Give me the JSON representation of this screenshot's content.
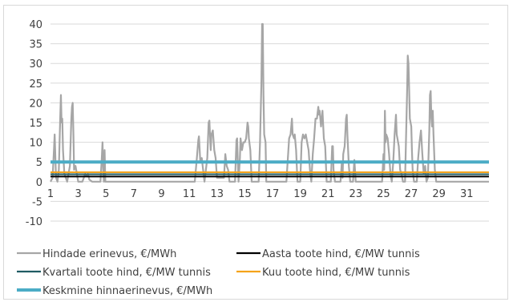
{
  "chart_data": {
    "type": "line",
    "title": "",
    "xlabel": "",
    "ylabel": "",
    "ylim": [
      -10,
      40
    ],
    "y_ticks": [
      -10,
      -5,
      0,
      5,
      10,
      15,
      20,
      25,
      30,
      35,
      40
    ],
    "x_tick_labels": [
      "1",
      "3",
      "5",
      "7",
      "9",
      "11",
      "13",
      "15",
      "17",
      "19",
      "21",
      "23",
      "25",
      "27",
      "29",
      "31"
    ],
    "x_range": [
      1,
      32.6
    ],
    "grid": "horizontal",
    "legend_position": "bottom",
    "series": [
      {
        "name": "Hindade erinevus, €/MWh",
        "color": "#a6a6a6",
        "points": [
          [
            1.0,
            0
          ],
          [
            1.15,
            1
          ],
          [
            1.25,
            8
          ],
          [
            1.3,
            12
          ],
          [
            1.35,
            6
          ],
          [
            1.4,
            1
          ],
          [
            1.5,
            0
          ],
          [
            1.6,
            3
          ],
          [
            1.7,
            16
          ],
          [
            1.75,
            22
          ],
          [
            1.8,
            15
          ],
          [
            1.85,
            16
          ],
          [
            1.9,
            8
          ],
          [
            2.0,
            2
          ],
          [
            2.2,
            0
          ],
          [
            2.4,
            4
          ],
          [
            2.5,
            16
          ],
          [
            2.55,
            19
          ],
          [
            2.6,
            20
          ],
          [
            2.65,
            12
          ],
          [
            2.7,
            3
          ],
          [
            2.8,
            4
          ],
          [
            2.9,
            2
          ],
          [
            3.0,
            0
          ],
          [
            3.3,
            0
          ],
          [
            3.5,
            2
          ],
          [
            3.6,
            1.5
          ],
          [
            3.7,
            2
          ],
          [
            3.8,
            0.5
          ],
          [
            4.0,
            0
          ],
          [
            4.6,
            0
          ],
          [
            4.7,
            6
          ],
          [
            4.75,
            10
          ],
          [
            4.8,
            3
          ],
          [
            4.85,
            0
          ],
          [
            4.9,
            8
          ],
          [
            4.95,
            0
          ],
          [
            11.4,
            0
          ],
          [
            11.55,
            6
          ],
          [
            11.65,
            10.5
          ],
          [
            11.7,
            11.5
          ],
          [
            11.8,
            5
          ],
          [
            11.9,
            6
          ],
          [
            12.0,
            3
          ],
          [
            12.1,
            0
          ],
          [
            12.3,
            6
          ],
          [
            12.4,
            15
          ],
          [
            12.45,
            15.5
          ],
          [
            12.55,
            8
          ],
          [
            12.6,
            12
          ],
          [
            12.7,
            13
          ],
          [
            12.8,
            8
          ],
          [
            12.9,
            6
          ],
          [
            13.0,
            1
          ],
          [
            13.5,
            1
          ],
          [
            13.6,
            7
          ],
          [
            13.7,
            4
          ],
          [
            13.8,
            3
          ],
          [
            13.9,
            0
          ],
          [
            14.3,
            0
          ],
          [
            14.4,
            10.5
          ],
          [
            14.45,
            11
          ],
          [
            14.5,
            5
          ],
          [
            14.55,
            0
          ],
          [
            14.65,
            6
          ],
          [
            14.7,
            11
          ],
          [
            14.8,
            8
          ],
          [
            14.9,
            10
          ],
          [
            15.0,
            10
          ],
          [
            15.1,
            11
          ],
          [
            15.2,
            15
          ],
          [
            15.25,
            14
          ],
          [
            15.3,
            11
          ],
          [
            15.4,
            8
          ],
          [
            15.5,
            0
          ],
          [
            16.0,
            0
          ],
          [
            16.1,
            10
          ],
          [
            16.2,
            25
          ],
          [
            16.25,
            40
          ],
          [
            16.3,
            40
          ],
          [
            16.35,
            22
          ],
          [
            16.4,
            12
          ],
          [
            16.5,
            10
          ],
          [
            16.55,
            0
          ],
          [
            18.0,
            0
          ],
          [
            18.2,
            11
          ],
          [
            18.3,
            12
          ],
          [
            18.4,
            16
          ],
          [
            18.45,
            12
          ],
          [
            18.55,
            11
          ],
          [
            18.6,
            12
          ],
          [
            18.7,
            8
          ],
          [
            18.8,
            0
          ],
          [
            19.0,
            0
          ],
          [
            19.1,
            10
          ],
          [
            19.2,
            12
          ],
          [
            19.3,
            11
          ],
          [
            19.4,
            12
          ],
          [
            19.5,
            10
          ],
          [
            19.6,
            8
          ],
          [
            19.7,
            3
          ],
          [
            19.8,
            0
          ],
          [
            19.9,
            7
          ],
          [
            20.0,
            11
          ],
          [
            20.1,
            16
          ],
          [
            20.2,
            16
          ],
          [
            20.3,
            19
          ],
          [
            20.35,
            17
          ],
          [
            20.4,
            18
          ],
          [
            20.5,
            14
          ],
          [
            20.6,
            18
          ],
          [
            20.7,
            11
          ],
          [
            20.8,
            9
          ],
          [
            20.9,
            0
          ],
          [
            21.2,
            0
          ],
          [
            21.3,
            9
          ],
          [
            21.35,
            9
          ],
          [
            21.4,
            3
          ],
          [
            21.5,
            0
          ],
          [
            21.9,
            0
          ],
          [
            22.0,
            5
          ],
          [
            22.05,
            1
          ],
          [
            22.1,
            7
          ],
          [
            22.2,
            9
          ],
          [
            22.3,
            16
          ],
          [
            22.35,
            17
          ],
          [
            22.4,
            12
          ],
          [
            22.5,
            4
          ],
          [
            22.6,
            0
          ],
          [
            22.8,
            0
          ],
          [
            22.9,
            5.5
          ],
          [
            23.0,
            0
          ],
          [
            24.9,
            0
          ],
          [
            25.0,
            7
          ],
          [
            25.05,
            3
          ],
          [
            25.1,
            18
          ],
          [
            25.15,
            10
          ],
          [
            25.2,
            12
          ],
          [
            25.3,
            11
          ],
          [
            25.4,
            7
          ],
          [
            25.5,
            2
          ],
          [
            25.6,
            0
          ],
          [
            25.7,
            5
          ],
          [
            25.8,
            12
          ],
          [
            25.9,
            17
          ],
          [
            25.95,
            12
          ],
          [
            26.0,
            11
          ],
          [
            26.1,
            9
          ],
          [
            26.2,
            3
          ],
          [
            26.3,
            2
          ],
          [
            26.4,
            0
          ],
          [
            26.55,
            0
          ],
          [
            26.65,
            15
          ],
          [
            26.7,
            23
          ],
          [
            26.75,
            32
          ],
          [
            26.8,
            30
          ],
          [
            26.85,
            23
          ],
          [
            26.9,
            16
          ],
          [
            27.0,
            14
          ],
          [
            27.05,
            8
          ],
          [
            27.1,
            3
          ],
          [
            27.2,
            0
          ],
          [
            27.4,
            0
          ],
          [
            27.5,
            6
          ],
          [
            27.6,
            10
          ],
          [
            27.7,
            13
          ],
          [
            27.8,
            7
          ],
          [
            27.9,
            2
          ],
          [
            28.0,
            4
          ],
          [
            28.1,
            0
          ],
          [
            28.2,
            1
          ],
          [
            28.3,
            13
          ],
          [
            28.35,
            22
          ],
          [
            28.4,
            23
          ],
          [
            28.45,
            16
          ],
          [
            28.5,
            14
          ],
          [
            28.55,
            18
          ],
          [
            28.6,
            12
          ],
          [
            28.7,
            3
          ],
          [
            28.8,
            0
          ],
          [
            32.6,
            0
          ]
        ]
      },
      {
        "name": "Aasta toote hind, €/MW tunnis",
        "color": "#000000",
        "value": 1.3
      },
      {
        "name": "Kvartali toote hind, €/MW tunnis",
        "color": "#1f5b63",
        "value": 1.9
      },
      {
        "name": "Kuu toote hind, €/MW tunnis",
        "color": "#f5a31a",
        "value": 2.4
      },
      {
        "name": "Keskmine hinnaerinevus, €/MWh",
        "color": "#4bacc6",
        "value": 5.0
      }
    ]
  }
}
